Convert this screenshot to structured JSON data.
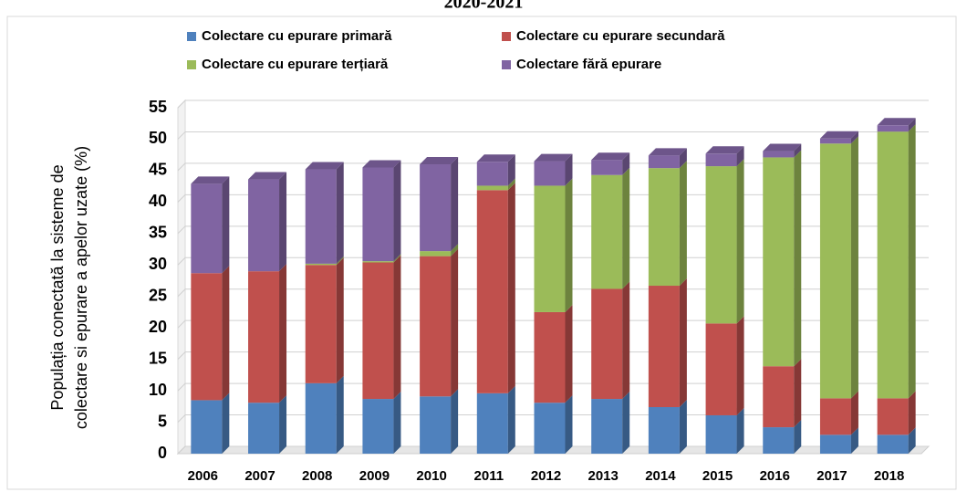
{
  "chart_data": {
    "type": "bar",
    "stacked": true,
    "title": "2020-2021",
    "ylabel_lines": [
      "Populația conectată la sisteme de",
      "colectare si epurare a apelor uzate (%)"
    ],
    "categories": [
      "2006",
      "2007",
      "2008",
      "2009",
      "2010",
      "2011",
      "2012",
      "2013",
      "2014",
      "2015",
      "2016",
      "2017",
      "2018"
    ],
    "series": [
      {
        "name": "Colectare cu epurare primară",
        "color": "#4f81bd",
        "values": [
          8.5,
          8.1,
          11.2,
          8.7,
          9.1,
          9.6,
          8.1,
          8.7,
          7.4,
          6.1,
          4.2,
          3.0,
          3.0
        ]
      },
      {
        "name": "Colectare cu epurare secundară",
        "color": "#c0504d",
        "values": [
          20.2,
          20.9,
          18.8,
          21.7,
          22.3,
          32.3,
          14.4,
          17.5,
          19.3,
          14.6,
          9.7,
          5.8,
          5.8
        ]
      },
      {
        "name": "Colectare cu epurare terțiară",
        "color": "#9bbb59",
        "values": [
          0,
          0,
          0.2,
          0.2,
          0.8,
          0.7,
          20.1,
          18.1,
          18.7,
          25.0,
          33.2,
          40.5,
          42.4
        ]
      },
      {
        "name": "Colectare fără epurare",
        "color": "#8064a2",
        "values": [
          14.2,
          14.6,
          15.0,
          14.9,
          13.8,
          3.8,
          3.9,
          2.4,
          2.0,
          2.0,
          1.0,
          0.8,
          1.0
        ]
      }
    ],
    "ylim": [
      0,
      55
    ],
    "yticks": [
      0,
      5,
      10,
      15,
      20,
      25,
      30,
      35,
      40,
      45,
      50,
      55
    ],
    "grid": true
  }
}
